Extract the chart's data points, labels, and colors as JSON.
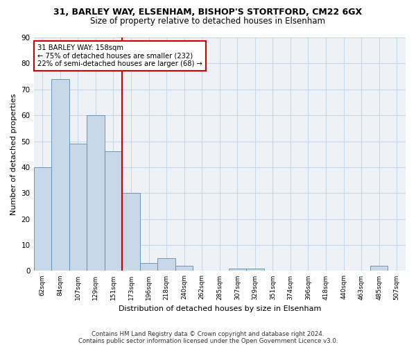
{
  "title_line1": "31, BARLEY WAY, ELSENHAM, BISHOP'S STORTFORD, CM22 6GX",
  "title_line2": "Size of property relative to detached houses in Elsenham",
  "xlabel": "Distribution of detached houses by size in Elsenham",
  "ylabel": "Number of detached properties",
  "categories": [
    "62sqm",
    "84sqm",
    "107sqm",
    "129sqm",
    "151sqm",
    "173sqm",
    "196sqm",
    "218sqm",
    "240sqm",
    "262sqm",
    "285sqm",
    "307sqm",
    "329sqm",
    "351sqm",
    "374sqm",
    "396sqm",
    "418sqm",
    "440sqm",
    "463sqm",
    "485sqm",
    "507sqm"
  ],
  "values": [
    40,
    74,
    49,
    60,
    46,
    30,
    3,
    5,
    2,
    0,
    0,
    1,
    1,
    0,
    0,
    0,
    0,
    0,
    0,
    2,
    0
  ],
  "bar_color": "#c8d8e8",
  "bar_edge_color": "#5a8ab0",
  "vline_x_index": 4.5,
  "vline_color": "#cc0000",
  "annotation_line1": "31 BARLEY WAY: 158sqm",
  "annotation_line2": "← 75% of detached houses are smaller (232)",
  "annotation_line3": "22% of semi-detached houses are larger (68) →",
  "annotation_box_color": "#cc0000",
  "ylim": [
    0,
    90
  ],
  "yticks": [
    0,
    10,
    20,
    30,
    40,
    50,
    60,
    70,
    80,
    90
  ],
  "grid_color": "#c8d8e8",
  "background_color": "#eef2f7",
  "footer": "Contains HM Land Registry data © Crown copyright and database right 2024.\nContains public sector information licensed under the Open Government Licence v3.0."
}
